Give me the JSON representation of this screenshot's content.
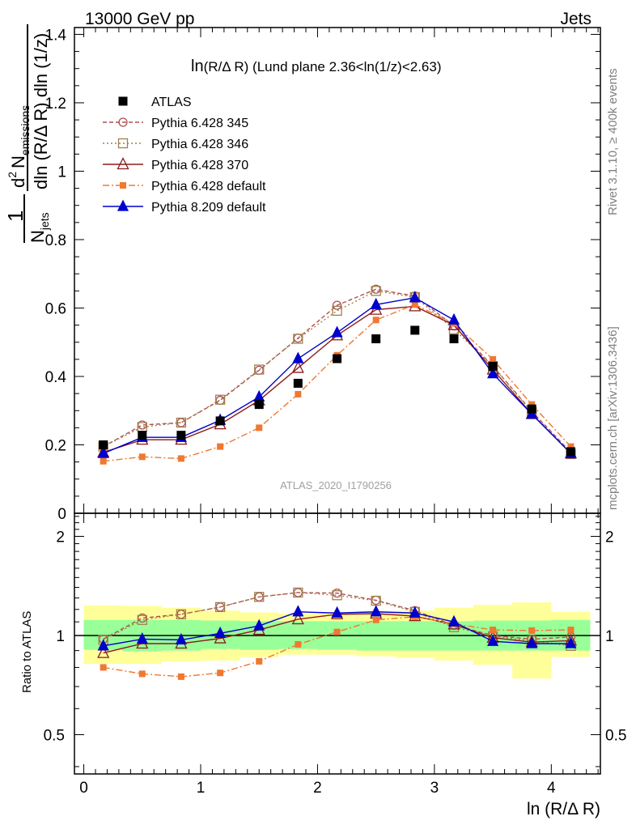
{
  "header": {
    "beam": "13000 GeV pp",
    "process": "Jets",
    "subtitle_main": "ln",
    "subtitle_paren": "(R/Δ R)",
    "subtitle_rest": " (Lund plane 2.36<ln(1/z)<2.63)",
    "watermark": "ATLAS_2020_I1790256",
    "side_rivet": "Rivet 3.1.10, ≥ 400k events",
    "side_mcplots": "mcplots.cern.ch [arXiv:1306.3436]"
  },
  "axes": {
    "xlabel": "ln (R/Δ R)",
    "ylabel_ratio": "Ratio to ATLAS",
    "ylabel_main_parts": {
      "one": "1",
      "njets": "N",
      "jets": "jets",
      "dln1": "dln (R/Δ R) dln (1/z)",
      "d2": "d",
      "two": "2",
      "nem": "N",
      "emissions": "emissions"
    },
    "x_ticks": [
      "0",
      "1",
      "2",
      "3",
      "4"
    ],
    "y_ticks_main": [
      "0",
      "0.2",
      "0.4",
      "0.6",
      "0.8",
      "1",
      "1.2",
      "1.4"
    ],
    "y_ticks_ratio": [
      "0.5",
      "1",
      "2"
    ]
  },
  "colors": {
    "atlas": "#000000",
    "p345": "#b05050",
    "p346": "#a08050",
    "p370": "#8b1a1a",
    "p6def": "#f07830",
    "p8def": "#0000cc",
    "band_inner": "#99ff99",
    "band_outer": "#ffff99"
  },
  "chart_data": {
    "type": "line",
    "xlim": [
      -0.08,
      4.42
    ],
    "ylim_main": [
      0,
      1.42
    ],
    "ylim_ratio": [
      0.38,
      2.35
    ],
    "ratio_log_scale": true,
    "legend_placement": "top-left",
    "x": [
      0.167,
      0.5,
      0.833,
      1.167,
      1.5,
      1.833,
      2.167,
      2.5,
      2.833,
      3.167,
      3.5,
      3.833,
      4.167
    ],
    "bin_edges": [
      0,
      0.333,
      0.667,
      1.0,
      1.333,
      1.667,
      2.0,
      2.333,
      2.667,
      3.0,
      3.333,
      3.667,
      4.0,
      4.333
    ],
    "series": [
      {
        "name": "ATLAS",
        "key": "atlas",
        "values": [
          0.2,
          0.228,
          0.228,
          0.27,
          0.318,
          0.38,
          0.452,
          0.51,
          0.535,
          0.51,
          0.43,
          0.305,
          0.18
        ],
        "ratio": [
          1,
          1,
          1,
          1,
          1,
          1,
          1,
          1,
          1,
          1,
          1,
          1,
          1
        ]
      },
      {
        "name": "Pythia 6.428 345",
        "key": "p345",
        "values": [
          0.195,
          0.258,
          0.265,
          0.33,
          0.418,
          0.512,
          0.608,
          0.655,
          0.635,
          0.548,
          0.43,
          0.298,
          0.178
        ],
        "ratio": [
          0.975,
          1.13,
          1.16,
          1.22,
          1.31,
          1.35,
          1.345,
          1.28,
          1.19,
          1.075,
          1.0,
          0.975,
          0.99
        ]
      },
      {
        "name": "Pythia 6.428 346",
        "key": "p346",
        "values": [
          0.195,
          0.252,
          0.265,
          0.332,
          0.42,
          0.51,
          0.592,
          0.65,
          0.632,
          0.538,
          0.43,
          0.296,
          0.173
        ],
        "ratio": [
          0.97,
          1.115,
          1.16,
          1.22,
          1.31,
          1.35,
          1.325,
          1.275,
          1.18,
          1.06,
          0.995,
          0.965,
          0.93
        ]
      },
      {
        "name": "Pythia 6.428 370",
        "key": "p370",
        "values": [
          0.178,
          0.215,
          0.215,
          0.26,
          0.33,
          0.425,
          0.52,
          0.595,
          0.605,
          0.55,
          0.42,
          0.29,
          0.175
        ],
        "ratio": [
          0.885,
          0.945,
          0.945,
          0.98,
          1.04,
          1.12,
          1.16,
          1.165,
          1.145,
          1.08,
          0.985,
          0.955,
          0.965
        ]
      },
      {
        "name": "Pythia 6.428 default",
        "key": "p6def",
        "values": [
          0.152,
          0.165,
          0.16,
          0.195,
          0.25,
          0.348,
          0.462,
          0.565,
          0.61,
          0.555,
          0.45,
          0.318,
          0.195
        ],
        "ratio": [
          0.8,
          0.765,
          0.75,
          0.77,
          0.835,
          0.94,
          1.025,
          1.115,
          1.14,
          1.085,
          1.04,
          1.035,
          1.04
        ]
      },
      {
        "name": "Pythia 8.209 default",
        "key": "p8def",
        "values": [
          0.175,
          0.222,
          0.222,
          0.272,
          0.34,
          0.452,
          0.528,
          0.61,
          0.63,
          0.565,
          0.408,
          0.29,
          0.175
        ],
        "ratio": [
          0.93,
          0.975,
          0.97,
          1.015,
          1.07,
          1.18,
          1.17,
          1.18,
          1.17,
          1.1,
          0.96,
          0.945,
          0.945
        ]
      }
    ],
    "band_inner": {
      "lo": [
        0.905,
        0.895,
        0.9,
        0.91,
        0.905,
        0.91,
        0.905,
        0.9,
        0.9,
        0.9,
        0.9,
        0.9,
        0.9
      ],
      "hi": [
        1.115,
        1.115,
        1.115,
        1.11,
        1.105,
        1.105,
        1.105,
        1.105,
        1.105,
        1.105,
        1.11,
        1.11,
        1.115
      ]
    },
    "band_outer": {
      "lo": [
        0.82,
        0.82,
        0.835,
        0.84,
        0.86,
        0.875,
        0.875,
        0.865,
        0.855,
        0.84,
        0.815,
        0.74,
        0.86
      ],
      "hi": [
        1.235,
        1.23,
        1.215,
        1.19,
        1.175,
        1.165,
        1.165,
        1.175,
        1.19,
        1.215,
        1.24,
        1.26,
        1.18
      ]
    }
  }
}
